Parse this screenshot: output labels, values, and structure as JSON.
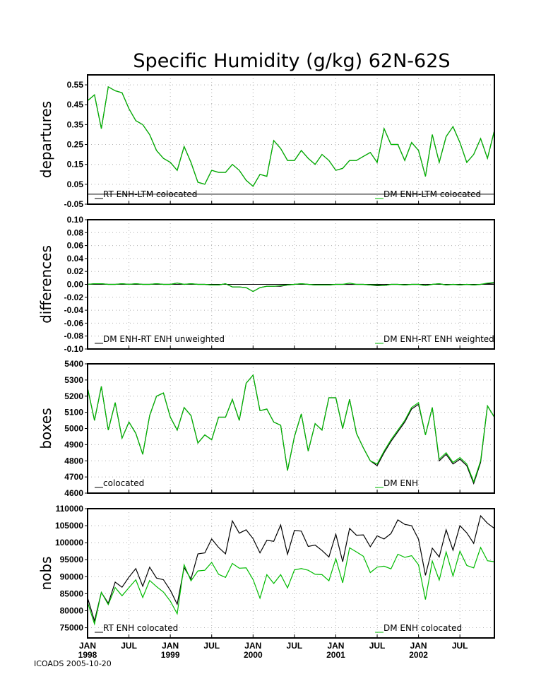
{
  "title": "Specific Humidity (g/kg) 62N-62S",
  "footer": "ICOADS 2005-10-20",
  "colors": {
    "black_series": "#000000",
    "green_series": "#00bb00",
    "reference_line": "#000000",
    "grid": "#b0b0b0"
  },
  "x_axis": {
    "months": 60,
    "start": "1998-01",
    "end": "2002-12",
    "month_ticks": [
      {
        "index": 0,
        "label": "JAN",
        "year": "1998"
      },
      {
        "index": 6,
        "label": "JUL",
        "year": ""
      },
      {
        "index": 12,
        "label": "JAN",
        "year": "1999"
      },
      {
        "index": 18,
        "label": "JUL",
        "year": ""
      },
      {
        "index": 24,
        "label": "JAN",
        "year": "2000"
      },
      {
        "index": 30,
        "label": "JUL",
        "year": ""
      },
      {
        "index": 36,
        "label": "JAN",
        "year": "2001"
      },
      {
        "index": 42,
        "label": "JUL",
        "year": ""
      },
      {
        "index": 48,
        "label": "JAN",
        "year": "2002"
      },
      {
        "index": 54,
        "label": "JUL",
        "year": ""
      }
    ]
  },
  "chart_data": [
    {
      "type": "line",
      "ylabel": "departures",
      "ylim": [
        -0.05,
        0.6
      ],
      "ticks": [
        "0.55",
        "0.45",
        "0.35",
        "0.25",
        "0.15",
        "0.05",
        "-0.05"
      ],
      "tick_values": [
        0.55,
        0.45,
        0.35,
        0.25,
        0.15,
        0.05,
        -0.05
      ],
      "reference_line": 0,
      "legend": {
        "left": "RT ENH-LTM colocated",
        "right": "DM ENH-LTM colocated"
      },
      "series": [
        {
          "name": "RT ENH-LTM colocated",
          "color": "#000000",
          "values": [
            0.47,
            0.5,
            0.33,
            0.54,
            0.52,
            0.51,
            0.43,
            0.37,
            0.35,
            0.3,
            0.22,
            0.18,
            0.16,
            0.12,
            0.24,
            0.16,
            0.06,
            0.05,
            0.12,
            0.11,
            0.11,
            0.15,
            0.12,
            0.07,
            0.04,
            0.1,
            0.09,
            0.27,
            0.23,
            0.17,
            0.17,
            0.22,
            0.18,
            0.15,
            0.2,
            0.17,
            0.12,
            0.13,
            0.17,
            0.17,
            0.19,
            0.21,
            0.16,
            0.33,
            0.25,
            0.25,
            0.17,
            0.26,
            0.22,
            0.09,
            0.3,
            0.16,
            0.29,
            0.34,
            0.26,
            0.16,
            0.2,
            0.28,
            0.18,
            0.32
          ]
        },
        {
          "name": "DM ENH-LTM colocated",
          "color": "#00bb00",
          "values": [
            0.47,
            0.5,
            0.33,
            0.54,
            0.52,
            0.51,
            0.43,
            0.37,
            0.35,
            0.3,
            0.22,
            0.18,
            0.16,
            0.12,
            0.24,
            0.16,
            0.06,
            0.05,
            0.12,
            0.11,
            0.11,
            0.15,
            0.12,
            0.07,
            0.04,
            0.1,
            0.09,
            0.27,
            0.23,
            0.17,
            0.17,
            0.22,
            0.18,
            0.15,
            0.2,
            0.17,
            0.12,
            0.13,
            0.17,
            0.17,
            0.19,
            0.21,
            0.16,
            0.33,
            0.25,
            0.25,
            0.17,
            0.26,
            0.22,
            0.09,
            0.3,
            0.16,
            0.29,
            0.34,
            0.26,
            0.16,
            0.2,
            0.28,
            0.18,
            0.32
          ]
        }
      ]
    },
    {
      "type": "line",
      "ylabel": "differences",
      "ylim": [
        -0.1,
        0.1
      ],
      "ticks": [
        "0.10",
        "0.08",
        "0.06",
        "0.04",
        "0.02",
        "0.00",
        "-0.02",
        "-0.04",
        "-0.06",
        "-0.08",
        "-0.10"
      ],
      "tick_values": [
        0.1,
        0.08,
        0.06,
        0.04,
        0.02,
        0.0,
        -0.02,
        -0.04,
        -0.06,
        -0.08,
        -0.1
      ],
      "reference_line": 0,
      "legend": {
        "left": "DM ENH-RT ENH unweighted",
        "right": "DM ENH-RT ENH weighted"
      },
      "series": [
        {
          "name": "DM ENH-RT ENH unweighted",
          "color": "#000000",
          "values": [
            0.0,
            0.001,
            0.001,
            0.0,
            0.0,
            0.001,
            0.0,
            0.001,
            0.0,
            0.0,
            0.001,
            0.0,
            0.0,
            0.002,
            0.0,
            0.001,
            0.0,
            0.0,
            -0.001,
            -0.001,
            0.001,
            -0.004,
            -0.004,
            -0.005,
            -0.011,
            -0.005,
            -0.003,
            -0.003,
            -0.003,
            -0.001,
            0.0,
            0.001,
            0.0,
            -0.001,
            -0.001,
            -0.001,
            0.0,
            0.0,
            0.0,
            0.0,
            0.0,
            -0.001,
            -0.002,
            -0.002,
            0.0,
            0.0,
            -0.001,
            0.0,
            0.0,
            -0.002,
            0.0,
            0.001,
            -0.001,
            0.0,
            -0.001,
            0.0,
            -0.001,
            0.0,
            0.001,
            0.002
          ]
        },
        {
          "name": "DM ENH-RT ENH weighted",
          "color": "#00bb00",
          "values": [
            0.0,
            0.001,
            0.001,
            0.0,
            0.0,
            0.001,
            0.0,
            0.001,
            0.0,
            0.0,
            0.001,
            0.0,
            0.0,
            0.002,
            0.0,
            0.001,
            0.0,
            0.0,
            -0.001,
            -0.001,
            0.001,
            -0.004,
            -0.004,
            -0.005,
            -0.011,
            -0.005,
            -0.003,
            -0.003,
            -0.002,
            -0.001,
            0.0,
            0.001,
            0.0,
            -0.001,
            -0.001,
            -0.001,
            0.0,
            0.0,
            0.002,
            0.0,
            0.0,
            -0.001,
            -0.001,
            -0.002,
            0.0,
            0.0,
            -0.001,
            0.0,
            0.0,
            -0.002,
            0.0,
            0.001,
            -0.001,
            0.0,
            -0.001,
            0.0,
            -0.001,
            0.0,
            0.002,
            0.003
          ]
        }
      ]
    },
    {
      "type": "line",
      "ylabel": "boxes",
      "ylim": [
        4600,
        5400
      ],
      "ticks": [
        "5400",
        "5300",
        "5200",
        "5100",
        "5000",
        "4900",
        "4800",
        "4700",
        "4600"
      ],
      "tick_values": [
        5400,
        5300,
        5200,
        5100,
        5000,
        4900,
        4800,
        4700,
        4600
      ],
      "reference_line": null,
      "legend": {
        "left": "colocated",
        "right": "DM ENH"
      },
      "series": [
        {
          "name": "colocated",
          "color": "#000000",
          "values": [
            5250,
            5050,
            5260,
            4990,
            5160,
            4940,
            5040,
            4970,
            4840,
            5080,
            5200,
            5220,
            5070,
            4990,
            5130,
            5080,
            4910,
            4960,
            4930,
            5070,
            5070,
            5180,
            5050,
            5280,
            5330,
            5110,
            5120,
            5040,
            5020,
            4740,
            4950,
            5090,
            4860,
            5030,
            4990,
            5190,
            5190,
            5000,
            5180,
            4970,
            4880,
            4800,
            4770,
            4850,
            4920,
            4980,
            5040,
            5120,
            5150,
            4960,
            5130,
            4800,
            4840,
            4780,
            4810,
            4770,
            4660,
            4790,
            5140,
            5070
          ]
        },
        {
          "name": "DM ENH",
          "color": "#00bb00",
          "values": [
            5250,
            5050,
            5260,
            4990,
            5160,
            4940,
            5040,
            4970,
            4840,
            5080,
            5200,
            5220,
            5070,
            4990,
            5130,
            5080,
            4910,
            4960,
            4930,
            5070,
            5070,
            5180,
            5050,
            5280,
            5330,
            5110,
            5120,
            5040,
            5020,
            4740,
            4950,
            5090,
            4860,
            5030,
            4990,
            5190,
            5190,
            5000,
            5180,
            4970,
            4880,
            4800,
            4780,
            4860,
            4930,
            4990,
            5050,
            5130,
            5160,
            4960,
            5130,
            4810,
            4850,
            4790,
            4820,
            4780,
            4670,
            4800,
            5140,
            5070
          ]
        }
      ]
    },
    {
      "type": "line",
      "ylabel": "nobs",
      "ylim": [
        72000,
        110000
      ],
      "ticks": [
        "110000",
        "105000",
        "100000",
        "95000",
        "90000",
        "85000",
        "80000",
        "75000"
      ],
      "tick_values": [
        110000,
        105000,
        100000,
        95000,
        90000,
        85000,
        80000,
        75000
      ],
      "reference_line": null,
      "legend": {
        "left": "RT ENH colocated",
        "right": "DM ENH colocated"
      },
      "series": [
        {
          "name": "RT ENH colocated",
          "color": "#000000",
          "values": [
            83800,
            77000,
            85400,
            82200,
            88400,
            86900,
            89900,
            92400,
            87200,
            92800,
            89600,
            89100,
            86000,
            81900,
            92700,
            89300,
            96700,
            97000,
            101100,
            98600,
            96700,
            106400,
            102800,
            103800,
            101200,
            97000,
            100700,
            100400,
            105200,
            96600,
            103600,
            103400,
            98900,
            99300,
            97700,
            95800,
            102500,
            94400,
            104200,
            102200,
            102300,
            98800,
            102000,
            101100,
            102700,
            106700,
            105400,
            105000,
            101000,
            90400,
            98400,
            95800,
            103800,
            97800,
            105000,
            102900,
            99800,
            107900,
            105700,
            104200
          ]
        },
        {
          "name": "DM ENH colocated",
          "color": "#00bb00",
          "values": [
            82500,
            76100,
            85400,
            81800,
            86800,
            84400,
            86800,
            89100,
            83900,
            88900,
            87100,
            85500,
            82800,
            79100,
            93500,
            88800,
            91700,
            91900,
            94200,
            90700,
            89800,
            93900,
            92500,
            92600,
            89200,
            83700,
            90600,
            88000,
            90600,
            86700,
            92000,
            92400,
            91900,
            90700,
            90600,
            88800,
            95300,
            88200,
            98500,
            97300,
            96000,
            91200,
            92800,
            93100,
            92300,
            96600,
            95700,
            96200,
            93500,
            83300,
            94600,
            89000,
            97300,
            90200,
            97500,
            93300,
            92600,
            98600,
            94700,
            94400
          ]
        }
      ]
    }
  ]
}
